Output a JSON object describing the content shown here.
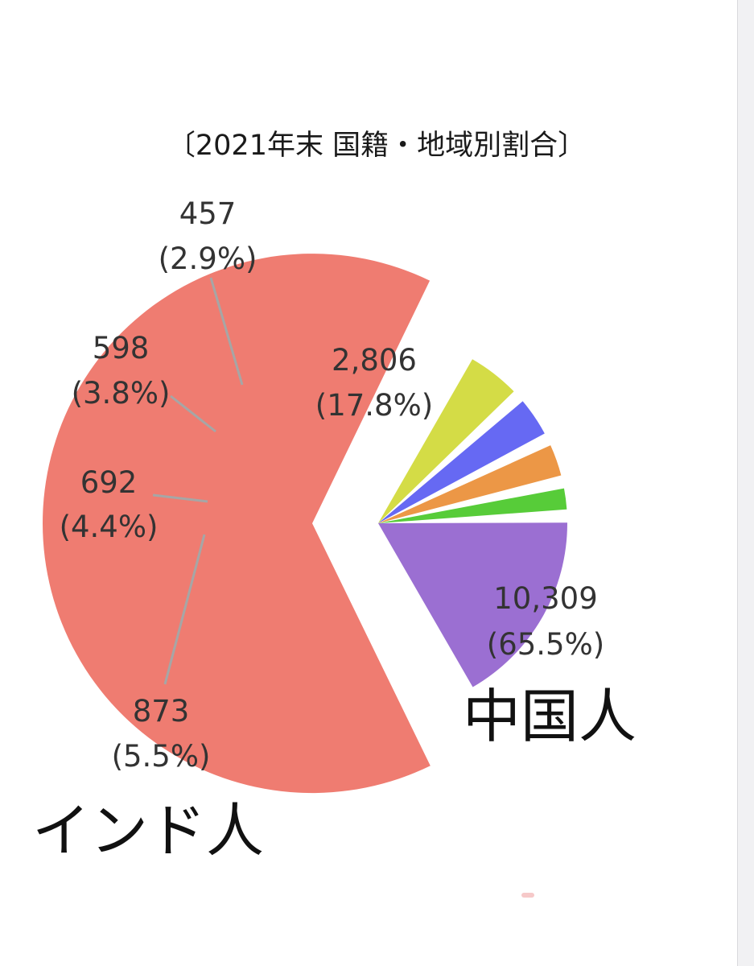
{
  "chart_data": {
    "type": "pie",
    "title": "〔2021年末 国籍・地域別割合〕",
    "labels": [
      "",
      "",
      "",
      "",
      "",
      ""
    ],
    "values": [
      10309,
      873,
      692,
      598,
      457,
      2806
    ],
    "value_labels": [
      "10,309",
      "873",
      "692",
      "598",
      "457",
      "2,806"
    ],
    "percent_labels": [
      "(65.5%)",
      "(5.5%)",
      "(4.4%)",
      "(3.8%)",
      "(2.9%)",
      "(17.8%)"
    ],
    "colors": [
      "#ef7c71",
      "#d4dc46",
      "#6669f3",
      "#ec9746",
      "#57cc39",
      "#9b6fd2"
    ],
    "exploded": true
  },
  "annotations": {
    "china": "中国人",
    "india": "インド人"
  }
}
